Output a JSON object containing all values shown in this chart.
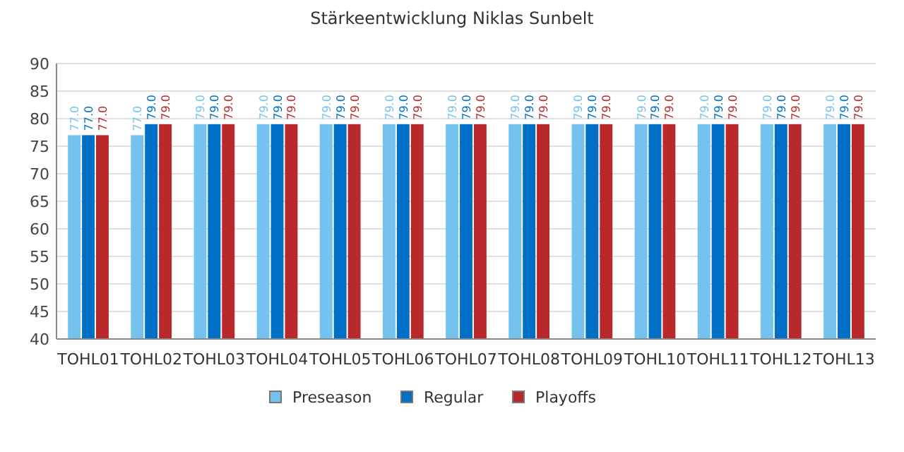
{
  "chart_data": {
    "type": "bar",
    "title": "Stärkeentwicklung Niklas Sunbelt",
    "categories": [
      "TOHL01",
      "TOHL02",
      "TOHL03",
      "TOHL04",
      "TOHL05",
      "TOHL06",
      "TOHL07",
      "TOHL08",
      "TOHL09",
      "TOHL10",
      "TOHL11",
      "TOHL12",
      "TOHL13"
    ],
    "series": [
      {
        "name": "Preseason",
        "color": "#74c3ef",
        "values": [
          77,
          77,
          79,
          79,
          79,
          79,
          79,
          79,
          79,
          79,
          79,
          79,
          79
        ],
        "value_labels": [
          "77.0",
          "77.0",
          "79.0",
          "79.0",
          "79.0",
          "79.0",
          "79.0",
          "79.0",
          "79.0",
          "79.0",
          "79.0",
          "79.0",
          "79.0"
        ]
      },
      {
        "name": "Regular",
        "color": "#006fc6",
        "values": [
          77,
          79,
          79,
          79,
          79,
          79,
          79,
          79,
          79,
          79,
          79,
          79,
          79
        ],
        "value_labels": [
          "77.0",
          "79.0",
          "79.0",
          "79.0",
          "79.0",
          "79.0",
          "79.0",
          "79.0",
          "79.0",
          "79.0",
          "79.0",
          "79.0",
          "79.0"
        ]
      },
      {
        "name": "Playoffs",
        "color": "#b9282a",
        "values": [
          77,
          79,
          79,
          79,
          79,
          79,
          79,
          79,
          79,
          79,
          79,
          79,
          79
        ],
        "value_labels": [
          "77.0",
          "79.0",
          "79.0",
          "79.0",
          "79.0",
          "79.0",
          "79.0",
          "79.0",
          "79.0",
          "79.0",
          "79.0",
          "79.0",
          "79.0"
        ]
      }
    ],
    "ylim": [
      40,
      90
    ],
    "yticks": [
      40,
      45,
      50,
      55,
      60,
      65,
      70,
      75,
      80,
      85,
      90
    ],
    "grid": "y",
    "legend": "bottom"
  }
}
